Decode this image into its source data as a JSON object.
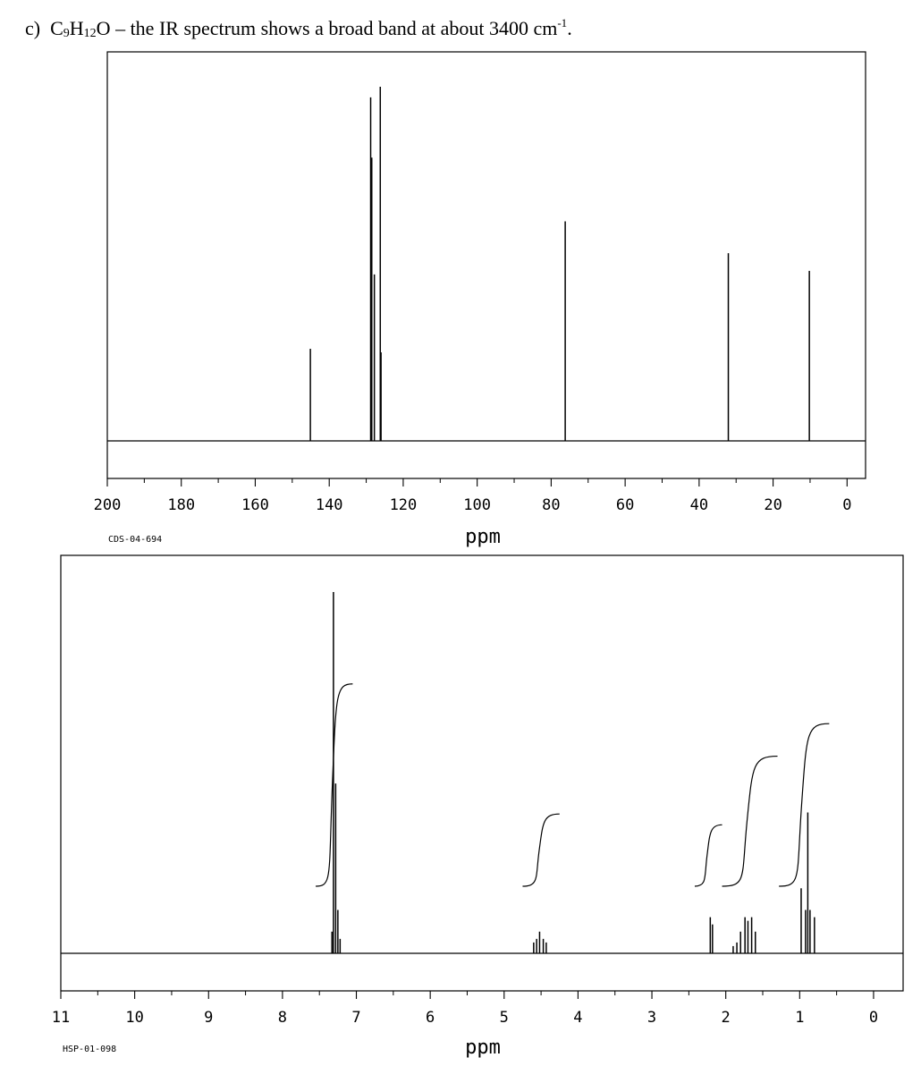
{
  "question": {
    "label": "c)",
    "formula_parts": [
      "C",
      "9",
      "H",
      "12",
      "O"
    ],
    "text": " – the IR spectrum shows a broad band at about 3400 cm",
    "superscript": "-1",
    "end": "."
  },
  "chart_data": [
    {
      "type": "line",
      "spectrum": "13C NMR",
      "code": "CDS-04-694",
      "xlabel": "ppm",
      "ylabel": "",
      "xlim": [
        200,
        -5
      ],
      "ylim": [
        0,
        1
      ],
      "x_reversed": true,
      "ticks": [
        "200",
        "180",
        "160",
        "140",
        "120",
        "100",
        "80",
        "60",
        "40",
        "20",
        "0"
      ],
      "peaks": [
        {
          "x": 145.1,
          "y": 0.26
        },
        {
          "x": 128.8,
          "y": 0.97
        },
        {
          "x": 128.5,
          "y": 0.8
        },
        {
          "x": 127.8,
          "y": 0.47
        },
        {
          "x": 126.2,
          "y": 1.0
        },
        {
          "x": 126.0,
          "y": 0.25
        },
        {
          "x": 76.2,
          "y": 0.62
        },
        {
          "x": 32.1,
          "y": 0.53
        },
        {
          "x": 10.2,
          "y": 0.48
        }
      ]
    },
    {
      "type": "line",
      "spectrum": "1H NMR",
      "code": "HSP-01-098",
      "xlabel": "ppm",
      "ylabel": "",
      "xlim": [
        11,
        -0.4
      ],
      "ylim": [
        0,
        1
      ],
      "x_reversed": true,
      "ticks": [
        "11",
        "10",
        "9",
        "8",
        "7",
        "6",
        "5",
        "4",
        "3",
        "2",
        "1",
        "0"
      ],
      "peaks": [
        {
          "x": 7.31,
          "y": 1.0
        },
        {
          "x": 7.28,
          "y": 0.47
        },
        {
          "x": 7.25,
          "y": 0.12
        },
        {
          "x": 7.33,
          "y": 0.06
        },
        {
          "x": 7.22,
          "y": 0.04
        },
        {
          "x": 4.6,
          "y": 0.03
        },
        {
          "x": 4.56,
          "y": 0.04
        },
        {
          "x": 4.52,
          "y": 0.06
        },
        {
          "x": 4.47,
          "y": 0.04
        },
        {
          "x": 4.43,
          "y": 0.03
        },
        {
          "x": 2.21,
          "y": 0.1
        },
        {
          "x": 2.18,
          "y": 0.08
        },
        {
          "x": 1.9,
          "y": 0.02
        },
        {
          "x": 1.85,
          "y": 0.03
        },
        {
          "x": 1.8,
          "y": 0.06
        },
        {
          "x": 1.74,
          "y": 0.1
        },
        {
          "x": 1.7,
          "y": 0.09
        },
        {
          "x": 1.65,
          "y": 0.1
        },
        {
          "x": 1.6,
          "y": 0.06
        },
        {
          "x": 0.98,
          "y": 0.18
        },
        {
          "x": 0.92,
          "y": 0.12
        },
        {
          "x": 0.89,
          "y": 0.39
        },
        {
          "x": 0.86,
          "y": 0.12
        },
        {
          "x": 0.8,
          "y": 0.1
        }
      ],
      "integrations": [
        {
          "from": 7.55,
          "to": 7.05,
          "height": 0.56
        },
        {
          "from": 4.75,
          "to": 4.25,
          "height": 0.2
        },
        {
          "from": 2.42,
          "to": 2.05,
          "height": 0.17
        },
        {
          "from": 2.05,
          "to": 1.3,
          "height": 0.36
        },
        {
          "from": 1.28,
          "to": 0.6,
          "height": 0.45
        }
      ]
    }
  ]
}
